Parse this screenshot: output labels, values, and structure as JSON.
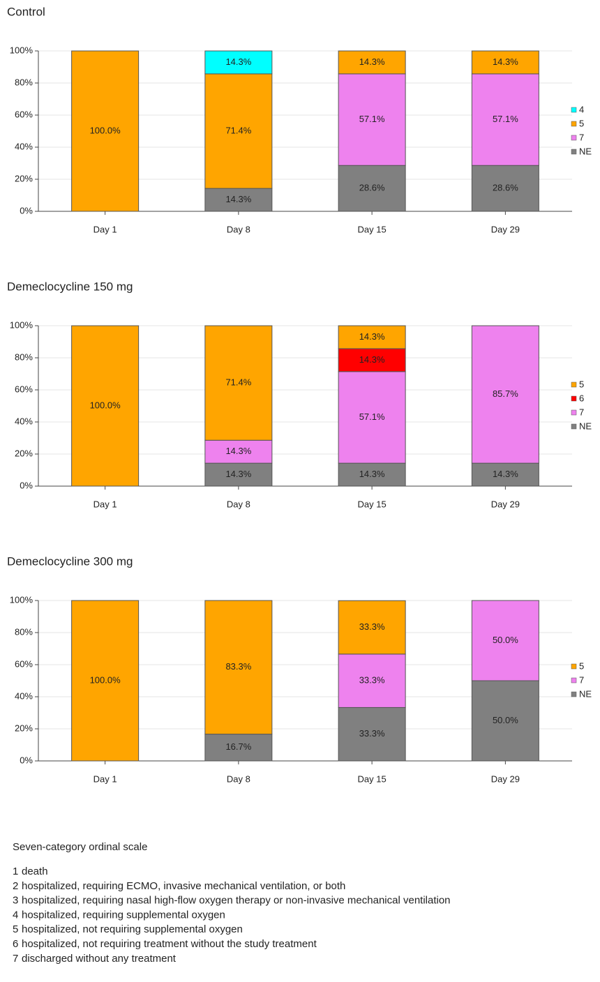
{
  "chart_data": [
    {
      "type": "bar",
      "stacked": true,
      "title": "Control",
      "categories": [
        "Day 1",
        "Day 8",
        "Day 15",
        "Day 29"
      ],
      "ylim": [
        0,
        100
      ],
      "yticks": [
        {
          "value": 0,
          "label": "0%"
        },
        {
          "value": 20,
          "label": "20%"
        },
        {
          "value": 40,
          "label": "40%"
        },
        {
          "value": 60,
          "label": "60%"
        },
        {
          "value": 80,
          "label": "80%"
        },
        {
          "value": 100,
          "label": "100%"
        }
      ],
      "grid": true,
      "legend": "right",
      "series": [
        {
          "name": "4",
          "color": "#00ffff",
          "values": [
            null,
            14.3,
            null,
            null
          ],
          "value_labels": [
            null,
            "14.3%",
            null,
            null
          ]
        },
        {
          "name": "5",
          "color": "#ffa500",
          "values": [
            100,
            71.4,
            14.3,
            14.3
          ],
          "value_labels": [
            "100.0%",
            "71.4%",
            "14.3%",
            "14.3%"
          ]
        },
        {
          "name": "7",
          "color": "#ee82ee",
          "values": [
            null,
            null,
            57.1,
            57.1
          ],
          "value_labels": [
            null,
            null,
            "57.1%",
            "57.1%"
          ]
        },
        {
          "name": "NE",
          "color": "#808080",
          "values": [
            null,
            14.3,
            28.6,
            28.6
          ],
          "value_labels": [
            null,
            "14.3%",
            "28.6%",
            "28.6%"
          ]
        }
      ]
    },
    {
      "type": "bar",
      "stacked": true,
      "title": "Demeclocycline 150 mg",
      "categories": [
        "Day 1",
        "Day 8",
        "Day 15",
        "Day 29"
      ],
      "ylim": [
        0,
        100
      ],
      "yticks": [
        {
          "value": 0,
          "label": "0%"
        },
        {
          "value": 20,
          "label": "20%"
        },
        {
          "value": 40,
          "label": "40%"
        },
        {
          "value": 60,
          "label": "60%"
        },
        {
          "value": 80,
          "label": "80%"
        },
        {
          "value": 100,
          "label": "100%"
        }
      ],
      "grid": true,
      "legend": "right",
      "series": [
        {
          "name": "5",
          "color": "#ffa500",
          "values": [
            100,
            71.4,
            14.3,
            null
          ],
          "value_labels": [
            "100.0%",
            "71.4%",
            "14.3%",
            null
          ]
        },
        {
          "name": "6",
          "color": "#ff0000",
          "values": [
            null,
            null,
            14.3,
            null
          ],
          "value_labels": [
            null,
            null,
            "14.3%",
            null
          ]
        },
        {
          "name": "7",
          "color": "#ee82ee",
          "values": [
            null,
            14.3,
            57.1,
            85.7
          ],
          "value_labels": [
            null,
            "14.3%",
            "57.1%",
            "85.7%"
          ]
        },
        {
          "name": "NE",
          "color": "#808080",
          "values": [
            null,
            14.3,
            14.3,
            14.3
          ],
          "value_labels": [
            null,
            "14.3%",
            "14.3%",
            "14.3%"
          ]
        }
      ]
    },
    {
      "type": "bar",
      "stacked": true,
      "title": "Demeclocycline 300 mg",
      "categories": [
        "Day 1",
        "Day 8",
        "Day 15",
        "Day 29"
      ],
      "ylim": [
        0,
        100
      ],
      "yticks": [
        {
          "value": 0,
          "label": "0%"
        },
        {
          "value": 20,
          "label": "20%"
        },
        {
          "value": 40,
          "label": "40%"
        },
        {
          "value": 60,
          "label": "60%"
        },
        {
          "value": 80,
          "label": "80%"
        },
        {
          "value": 100,
          "label": "100%"
        }
      ],
      "grid": true,
      "legend": "right",
      "series": [
        {
          "name": "5",
          "color": "#ffa500",
          "values": [
            100,
            83.3,
            33.3,
            null
          ],
          "value_labels": [
            "100.0%",
            "83.3%",
            "33.3%",
            null
          ]
        },
        {
          "name": "7",
          "color": "#ee82ee",
          "values": [
            null,
            null,
            33.3,
            50.0
          ],
          "value_labels": [
            null,
            null,
            "33.3%",
            "50.0%"
          ]
        },
        {
          "name": "NE",
          "color": "#808080",
          "values": [
            null,
            16.7,
            33.3,
            50.0
          ],
          "value_labels": [
            null,
            "16.7%",
            "33.3%",
            "50.0%"
          ]
        }
      ]
    }
  ],
  "scale": {
    "title": "Seven-category ordinal scale",
    "items": [
      {
        "number": "1",
        "text": "death"
      },
      {
        "number": "2",
        "text": "hospitalized, requiring ECMO, invasive mechanical ventilation, or both"
      },
      {
        "number": "3",
        "text": "hospitalized, requiring nasal high-flow oxygen therapy or non-invasive mechanical ventilation"
      },
      {
        "number": "4",
        "text": "hospitalized, requiring supplemental oxygen"
      },
      {
        "number": "5",
        "text": "hospitalized, not requiring supplemental oxygen"
      },
      {
        "number": "6",
        "text": "hospitalized, not requiring treatment without the study treatment"
      },
      {
        "number": "7",
        "text": "discharged without any treatment"
      }
    ]
  }
}
